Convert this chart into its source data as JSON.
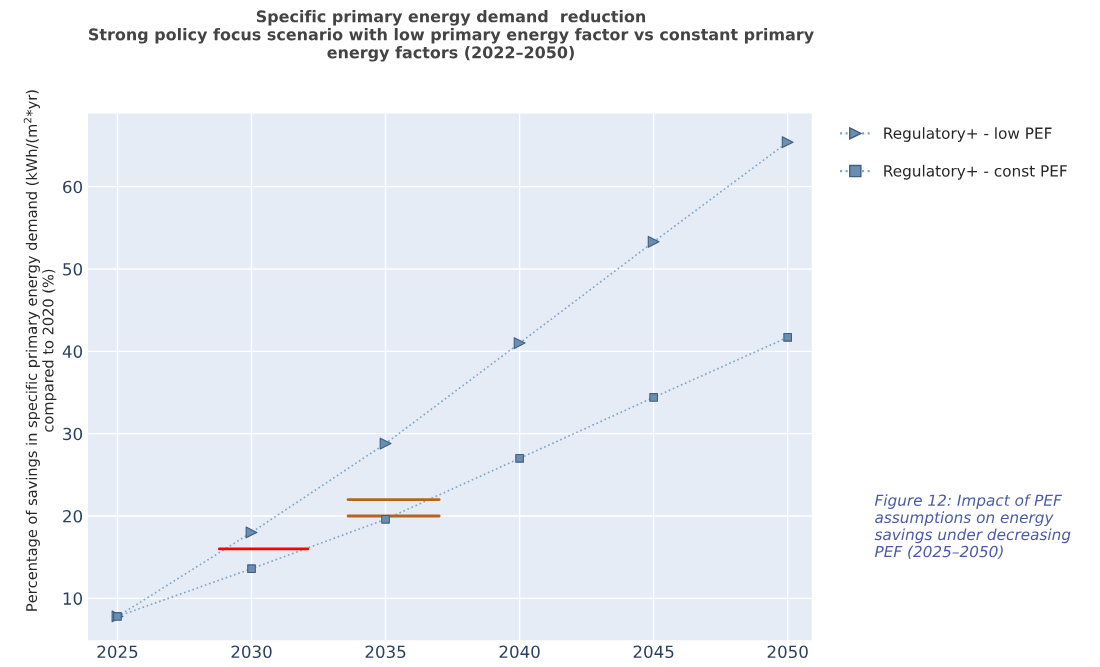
{
  "chart_data": {
    "type": "line",
    "title": "Specific primary energy demand  reduction\nStrong policy focus scenario with low primary energy factor vs constant primary\nenergy factors (2022–2050)",
    "ylabel": "Percentage of savings in specific primary energy demand (kWh/(m$^{2}$*yr)\ncompared to 2020 (%)",
    "x": [
      2025,
      2030,
      2035,
      2040,
      2045,
      2050
    ],
    "series": [
      {
        "name": "Regulatory+ - low PEF",
        "color": "#7fa6c9",
        "marker": "triangle",
        "values": [
          7.8,
          18.0,
          28.8,
          41.0,
          53.3,
          65.4
        ]
      },
      {
        "name": "Regulatory+ - const PEF",
        "color": "#7fa6c9",
        "marker": "square",
        "values": [
          7.8,
          13.6,
          19.6,
          27.0,
          34.4,
          41.7
        ]
      },
      {
        "type": "line",
        "color": "#ff0000",
        "line_style": "solid",
        "marker": "none",
        "x": [
          2028.8,
          2032.1
        ],
        "values": [
          16,
          16
        ]
      },
      {
        "type": "line",
        "color": "#b5651d",
        "line_style": "solid",
        "marker": "none",
        "x": [
          2033.6,
          2037.0
        ],
        "values": [
          22,
          22
        ]
      },
      {
        "type": "line",
        "color": "#b5651d",
        "line_style": "solid",
        "marker": "none",
        "x": [
          2033.6,
          2037.0
        ],
        "values": [
          20,
          20
        ]
      }
    ],
    "line_style": "dotted",
    "grid": true,
    "legend": "right",
    "xlim": [
      2023.9,
      2050.9
    ],
    "xticks": [
      2025,
      2030,
      2035,
      2040,
      2045,
      2050
    ],
    "ylim": [
      4.9,
      68.9
    ],
    "yticks": [
      10,
      20,
      30,
      40,
      50,
      60
    ],
    "annotations": [
      "Figure 12: Impact of PEF assumptions on energy savings under decreasing PEF (2025–2050)"
    ]
  }
}
